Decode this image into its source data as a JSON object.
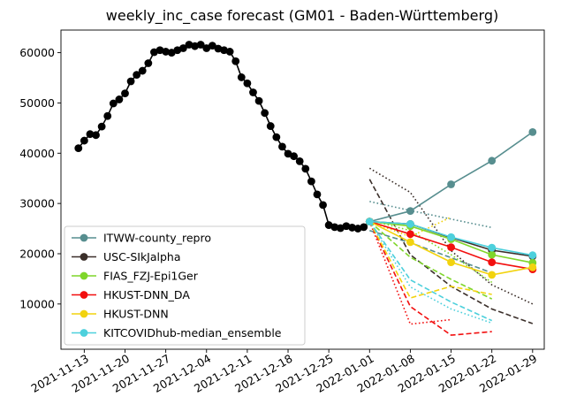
{
  "chart_data": {
    "type": "line",
    "title": "weekly_inc_case forecast (GM01 - Baden-Württemberg)",
    "xlabel": "",
    "ylabel": "",
    "xlim": [
      "2021-11-09",
      "2022-01-31"
    ],
    "ylim": [
      1000,
      64500
    ],
    "x_ticks": [
      "2021-11-13",
      "2021-11-20",
      "2021-11-27",
      "2021-12-04",
      "2021-12-11",
      "2021-12-18",
      "2021-12-25",
      "2022-01-01",
      "2022-01-08",
      "2022-01-15",
      "2022-01-22",
      "2022-01-29"
    ],
    "y_ticks": [
      10000,
      20000,
      30000,
      40000,
      50000,
      60000
    ],
    "y_tick_labels": [
      "10000",
      "20000",
      "30000",
      "40000",
      "50000",
      "60000"
    ],
    "grid": false,
    "legend_position": "lower-left",
    "observed": {
      "color": "#000000",
      "x": [
        "2021-11-12",
        "2021-11-13",
        "2021-11-14",
        "2021-11-15",
        "2021-11-16",
        "2021-11-17",
        "2021-11-18",
        "2021-11-19",
        "2021-11-20",
        "2021-11-21",
        "2021-11-22",
        "2021-11-23",
        "2021-11-24",
        "2021-11-25",
        "2021-11-26",
        "2021-11-27",
        "2021-11-28",
        "2021-11-29",
        "2021-11-30",
        "2021-12-01",
        "2021-12-02",
        "2021-12-03",
        "2021-12-04",
        "2021-12-05",
        "2021-12-06",
        "2021-12-07",
        "2021-12-08",
        "2021-12-09",
        "2021-12-10",
        "2021-12-11",
        "2021-12-12",
        "2021-12-13",
        "2021-12-14",
        "2021-12-15",
        "2021-12-16",
        "2021-12-17",
        "2021-12-18",
        "2021-12-19",
        "2021-12-20",
        "2021-12-21",
        "2021-12-22",
        "2021-12-23",
        "2021-12-24",
        "2021-12-25",
        "2021-12-26",
        "2021-12-27",
        "2021-12-28",
        "2021-12-29",
        "2021-12-30",
        "2021-12-31",
        "2022-01-01"
      ],
      "y": [
        41000,
        42500,
        43800,
        43600,
        45300,
        47400,
        49900,
        50700,
        51900,
        54300,
        55600,
        56400,
        57900,
        60100,
        60500,
        60200,
        60000,
        60500,
        60900,
        61600,
        61300,
        61600,
        60900,
        61400,
        60800,
        60500,
        60200,
        58300,
        55100,
        53900,
        52100,
        50400,
        48000,
        45400,
        43200,
        41300,
        39900,
        39400,
        38400,
        36900,
        34400,
        31800,
        29700,
        25700,
        25300,
        25100,
        25500,
        25200,
        25000,
        25300,
        26400
      ]
    },
    "forecast_x": [
      "2022-01-01",
      "2022-01-08",
      "2022-01-15",
      "2022-01-22",
      "2022-01-29"
    ],
    "series": [
      {
        "name": "ITWW-county_repro",
        "color": "#578E8F",
        "values": [
          26400,
          28500,
          33800,
          38500,
          44200
        ],
        "band_lower": [
          24600,
          22200,
          19200,
          16200
        ],
        "band_upper": [
          30400,
          28600,
          26900,
          25200
        ]
      },
      {
        "name": "USC-SIkJalpha",
        "color": "#3B2F2A",
        "values": [
          26400,
          25900,
          23200,
          20700,
          19500
        ],
        "band_lower": [
          34800,
          19800,
          13500,
          9000,
          6100
        ],
        "band_upper": [
          37000,
          32200,
          20600,
          13800,
          10000
        ]
      },
      {
        "name": "FIAS_FZJ-Epi1Ger",
        "color": "#7FD62A",
        "values": [
          26400,
          25500,
          22900,
          19800,
          18200
        ],
        "band_lower": [
          26400,
          19300,
          14900,
          11000
        ],
        "band_upper": [
          26700,
          24600,
          19800,
          14300
        ]
      },
      {
        "name": "HKUST-DNN_DA",
        "color": "#F20F0F",
        "values": [
          26400,
          23900,
          21300,
          18300,
          16900
        ],
        "band_lower": [
          26400,
          9500,
          3800,
          4500
        ],
        "band_upper": [
          26400,
          6000,
          6900
        ]
      },
      {
        "name": "HKUST-DNN",
        "color": "#F2D30F",
        "values": [
          26400,
          22300,
          18300,
          15800,
          17300
        ],
        "band_lower": [
          26400,
          11200,
          13500,
          11900
        ],
        "band_upper": [
          26400,
          23400,
          27300
        ]
      },
      {
        "name": "KITCOVIDhub-median_ensemble",
        "color": "#4DD0DC",
        "values": [
          26400,
          25900,
          23300,
          21200,
          19700
        ],
        "band_lower": [
          26400,
          14800,
          10400,
          6700
        ],
        "band_upper": [
          26400,
          13400,
          9000,
          6200
        ]
      }
    ]
  }
}
